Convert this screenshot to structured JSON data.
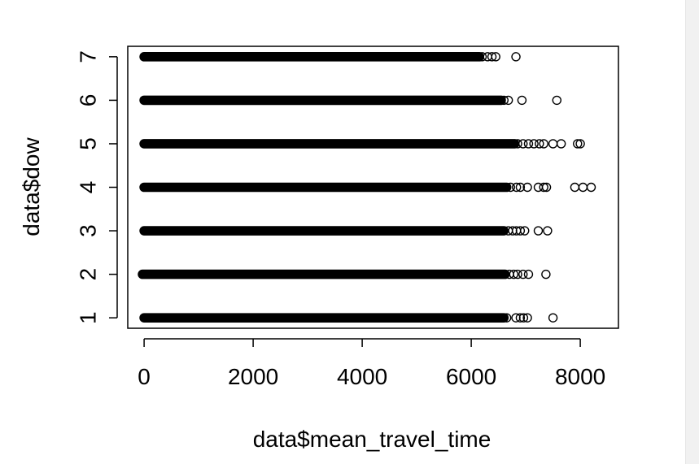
{
  "chart_data": {
    "type": "scatter",
    "title": "",
    "xlabel": "data$mean_travel_time",
    "ylabel": "data$dow",
    "xlim": [
      -300,
      8700
    ],
    "ylim": [
      0.76,
      7.24
    ],
    "x_ticks": [
      0,
      2000,
      4000,
      6000,
      8000
    ],
    "y_ticks": [
      1,
      2,
      3,
      4,
      5,
      6,
      7
    ],
    "marker": "open-circle",
    "grid": false,
    "legend": "none",
    "rows": [
      {
        "y": 1,
        "dense_from": 0,
        "dense_to": 6600,
        "points": [
          6650,
          6820,
          6900,
          6960,
          7030,
          7500
        ]
      },
      {
        "y": 2,
        "dense_from": -30,
        "dense_to": 6620,
        "points": [
          6700,
          6780,
          6850,
          6950,
          7050,
          7370
        ]
      },
      {
        "y": 3,
        "dense_from": 0,
        "dense_to": 6600,
        "points": [
          6680,
          6760,
          6830,
          6900,
          6980,
          7230,
          7400
        ]
      },
      {
        "y": 4,
        "dense_from": 0,
        "dense_to": 6650,
        "points": [
          6720,
          6830,
          6900,
          7030,
          7230,
          7330,
          7380,
          7900,
          8050,
          8200
        ]
      },
      {
        "y": 5,
        "dense_from": 0,
        "dense_to": 6800,
        "points": [
          6850,
          6950,
          7050,
          7150,
          7250,
          7330,
          7500,
          7650,
          7950,
          8000
        ]
      },
      {
        "y": 6,
        "dense_from": 0,
        "dense_to": 6550,
        "points": [
          6600,
          6680,
          6930,
          7570
        ]
      },
      {
        "y": 7,
        "dense_from": 0,
        "dense_to": 6150,
        "points": [
          6200,
          6300,
          6380,
          6450,
          6820
        ]
      }
    ]
  }
}
